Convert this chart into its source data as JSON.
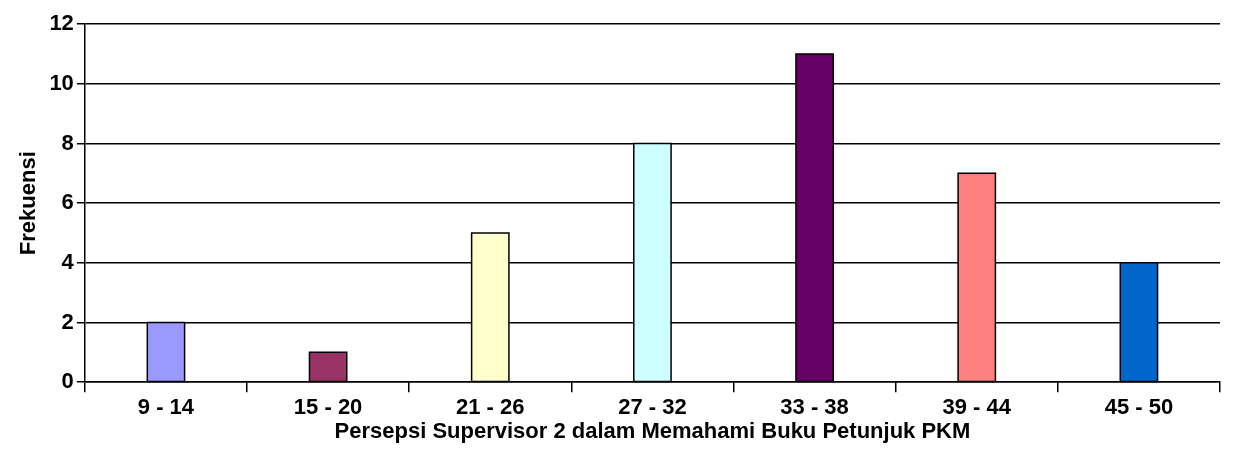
{
  "chart_data": {
    "type": "bar",
    "xlabel": "Persepsi Supervisor 2 dalam Memahami Buku Petunjuk PKM",
    "ylabel": "Frekuensi",
    "categories": [
      "9 - 14",
      "15 - 20",
      "21 - 26",
      "27 - 32",
      "33 - 38",
      "39 - 44",
      "45 - 50"
    ],
    "values": [
      2,
      1,
      5,
      8,
      11,
      7,
      4
    ],
    "colors": [
      "#9999ff",
      "#993366",
      "#ffffcc",
      "#ccffff",
      "#660066",
      "#ff8080",
      "#0066cc"
    ],
    "ylim": [
      0,
      12
    ],
    "yticks": [
      0,
      2,
      4,
      6,
      8,
      10,
      12
    ],
    "grid": "y",
    "legend": false
  }
}
